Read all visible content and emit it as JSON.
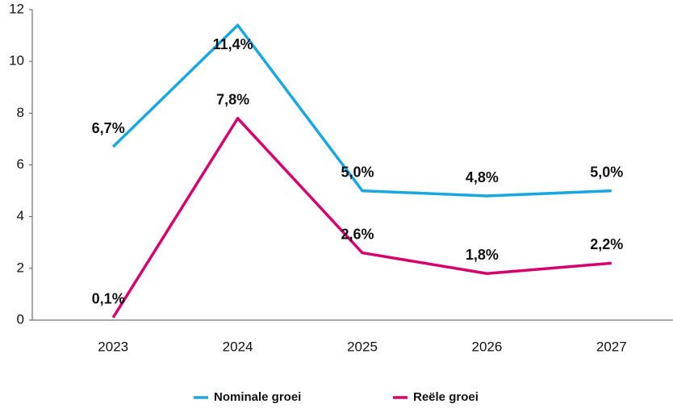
{
  "chart_data": {
    "type": "line",
    "categories": [
      "2023",
      "2024",
      "2025",
      "2026",
      "2027"
    ],
    "series": [
      {
        "name": "Nominale groei",
        "color": "#1aa7e0",
        "values": [
          6.7,
          11.4,
          5.0,
          4.8,
          5.0
        ],
        "value_labels": [
          "6,7%",
          "11,4%",
          "5,0%",
          "4,8%",
          "5,0%"
        ]
      },
      {
        "name": "Reële groei",
        "color": "#d7006d",
        "values": [
          0.1,
          7.8,
          2.6,
          1.8,
          2.2
        ],
        "value_labels": [
          "0,1%",
          "7,8%",
          "2,6%",
          "1,8%",
          "2,2%"
        ]
      }
    ],
    "ylim": [
      0,
      12
    ],
    "yticks": [
      0,
      2,
      4,
      6,
      8,
      10,
      12
    ],
    "grid": false,
    "legend": "bottom"
  }
}
